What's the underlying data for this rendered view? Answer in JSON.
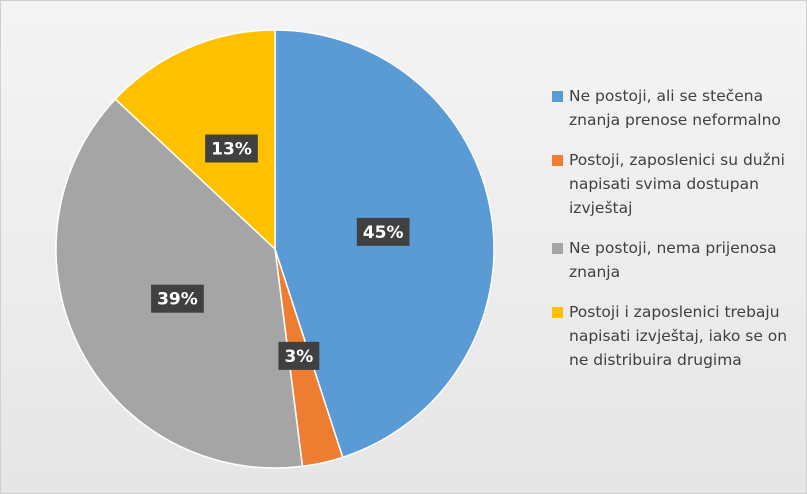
{
  "chart_data": {
    "type": "pie",
    "categories": [
      "Ne postoji, ali se stečena znanja prenose neformalno",
      "Postoji, zaposlenici su dužni napisati svima dostupan izvještaj",
      "Ne postoji, nema prijenosa znanja",
      "Postoji i zaposlenici trebaju napisati izvještaj, iako se on ne distribuira drugima"
    ],
    "values": [
      45,
      3,
      39,
      13
    ],
    "value_labels": [
      "45%",
      "3%",
      "39%",
      "13%"
    ],
    "colors": [
      "#5b9bd5",
      "#ed7d31",
      "#a5a5a5",
      "#ffc000"
    ],
    "legend": "right"
  }
}
